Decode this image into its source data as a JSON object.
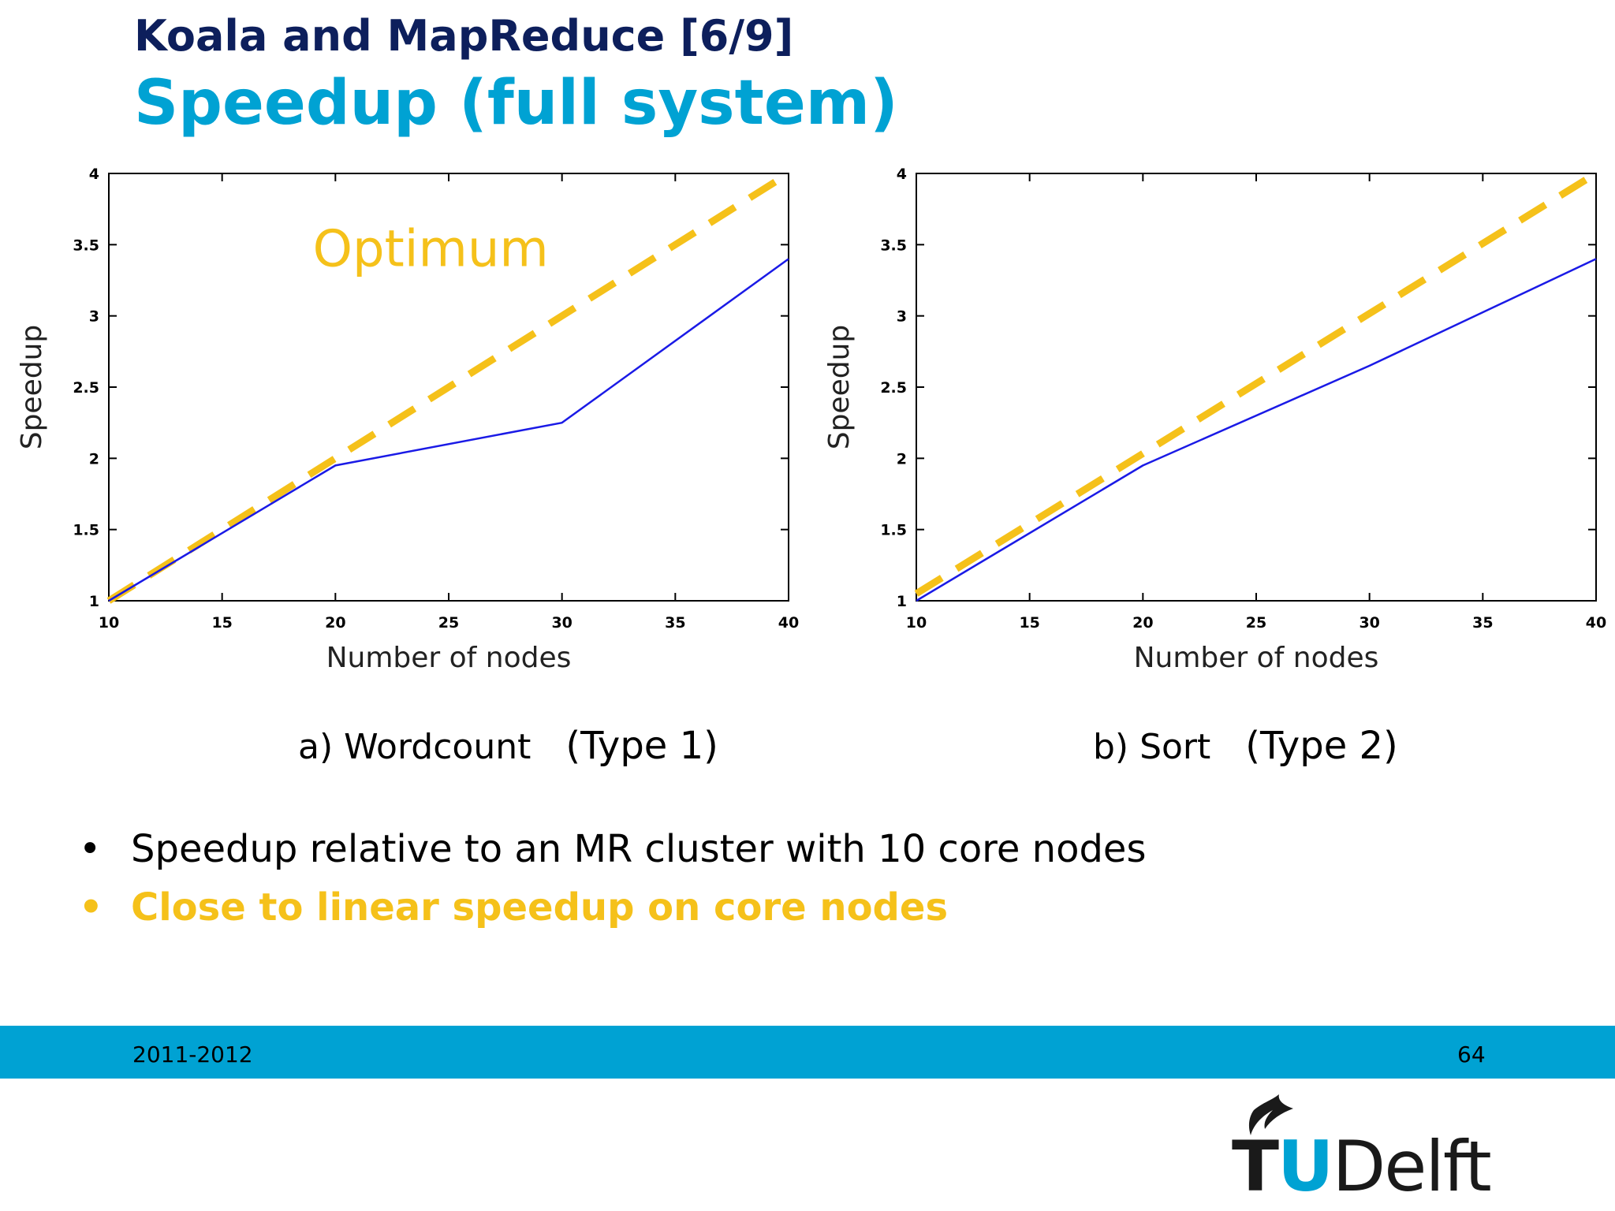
{
  "header": {
    "title": "Koala and MapReduce [6/9]",
    "subtitle": "Speedup (full system)"
  },
  "captions": [
    {
      "label": "a) Wordcount",
      "type": "(Type 1)"
    },
    {
      "label": "b) Sort",
      "type": "(Type 2)"
    }
  ],
  "bullets": [
    {
      "marker": "•",
      "text": "Speedup relative to an MR cluster with 10 core nodes"
    },
    {
      "marker": "•",
      "text": "Close to linear speedup on core nodes"
    }
  ],
  "footer": {
    "year": "2011-2012",
    "page": "64"
  },
  "logo": {
    "t": "T",
    "u": "U",
    "rest": "Delft"
  },
  "colors": {
    "title_dark": "#0d1f5c",
    "title_accent": "#00a2d3",
    "optimum": "#f5c11a",
    "measured": "#1a1ae6",
    "footer_bar": "#00a2d3"
  },
  "chart_data": [
    {
      "type": "line",
      "xlabel": "Number of nodes",
      "ylabel": "Speedup",
      "xlim": [
        10,
        40
      ],
      "ylim": [
        1,
        4
      ],
      "xticks": [
        10,
        15,
        20,
        25,
        30,
        35,
        40
      ],
      "yticks": [
        1,
        1.5,
        2,
        2.5,
        3,
        3.5,
        4
      ],
      "annotation": "Optimum",
      "series": [
        {
          "style": "dashed",
          "color": "#f5c11a",
          "x": [
            10,
            40
          ],
          "y": [
            1,
            4
          ]
        },
        {
          "style": "solid",
          "color": "#1a1ae6",
          "x": [
            10,
            20,
            30,
            40
          ],
          "y": [
            1,
            1.95,
            2.25,
            3.4
          ]
        }
      ]
    },
    {
      "type": "line",
      "xlabel": "Number of nodes",
      "ylabel": "Speedup",
      "xlim": [
        10,
        40
      ],
      "ylim": [
        1,
        4
      ],
      "xticks": [
        10,
        15,
        20,
        25,
        30,
        35,
        40
      ],
      "yticks": [
        1,
        1.5,
        2,
        2.5,
        3,
        3.5,
        4
      ],
      "annotation": "",
      "series": [
        {
          "style": "dashed",
          "color": "#f5c11a",
          "x": [
            10,
            40
          ],
          "y": [
            1.05,
            4
          ]
        },
        {
          "style": "solid",
          "color": "#1a1ae6",
          "x": [
            10,
            20,
            30,
            40
          ],
          "y": [
            1,
            1.95,
            2.65,
            3.4
          ]
        }
      ]
    }
  ]
}
